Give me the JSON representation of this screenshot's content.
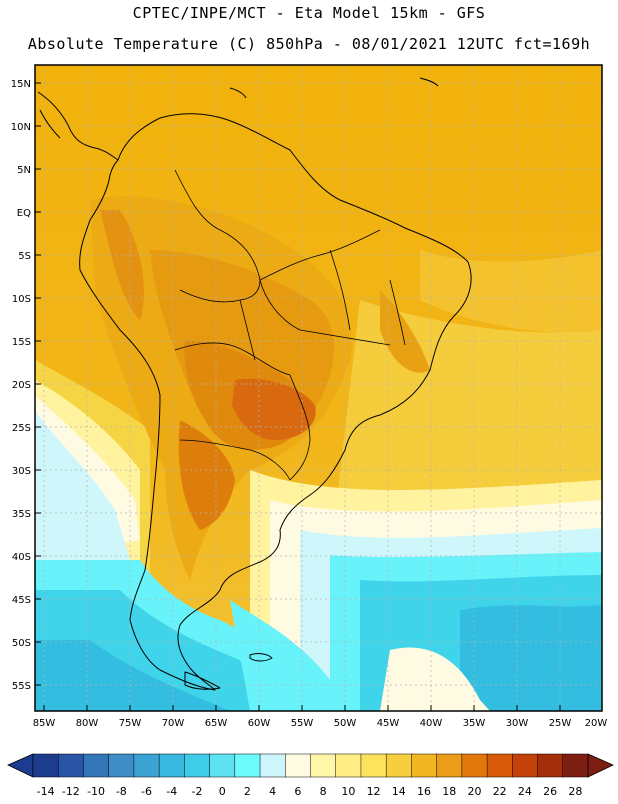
{
  "header": {
    "line1": "CPTEC/INPE/MCT -  Eta Model 15km - GFS",
    "line2": "Absolute Temperature (C) 850hPa - 08/01/2021 12UTC fct=169h"
  },
  "map": {
    "lat_labels": [
      "15N",
      "10N",
      "5N",
      "EQ",
      "5S",
      "10S",
      "15S",
      "20S",
      "25S",
      "30S",
      "35S",
      "40S",
      "45S",
      "50S",
      "55S"
    ],
    "lon_labels": [
      "85W",
      "80W",
      "75W",
      "70W",
      "65W",
      "60W",
      "55W",
      "50W",
      "45W",
      "40W",
      "35W",
      "30W",
      "25W",
      "20W"
    ],
    "field_colors": {
      "ocean_warm": "#f0b50c",
      "land_warm": "#f2b214",
      "hot": "#e2810a",
      "hottest": "#d9690f",
      "mild": "#f6d545",
      "cool": "#fff3a0",
      "cream": "#fffbe2",
      "pale_cyan": "#cff6fb",
      "cyan": "#68f3fb",
      "light_blue": "#3fd4ea",
      "blue": "#33bde0"
    }
  },
  "colorbar": {
    "levels": [
      "-14",
      "-12",
      "-10",
      "-8",
      "-6",
      "-4",
      "-2",
      "0",
      "2",
      "4",
      "6",
      "8",
      "10",
      "12",
      "14",
      "16",
      "18",
      "20",
      "22",
      "24",
      "26",
      "28"
    ],
    "colors": [
      "#1e3c8f",
      "#2a55a6",
      "#3377b8",
      "#3f8dc6",
      "#3ba3d3",
      "#37b8de",
      "#3fcce9",
      "#5ee2f2",
      "#6dfafb",
      "#cdf5fc",
      "#fffae2",
      "#fff6a8",
      "#ffef86",
      "#fde25e",
      "#f7cf3e",
      "#f0b624",
      "#eb9c18",
      "#e2780c",
      "#d85a08",
      "#c4420a",
      "#a32f0a",
      "#7d1e12"
    ],
    "low_end_color": "#1e3c8f",
    "high_end_color": "#7d1e12"
  }
}
